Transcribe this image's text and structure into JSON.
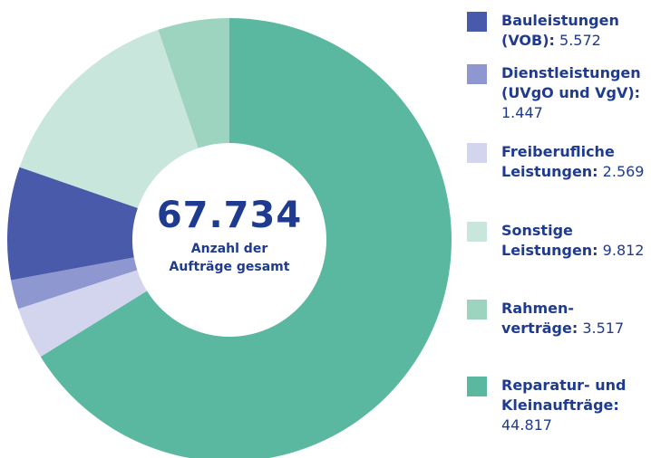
{
  "chart_data": {
    "type": "donut",
    "total": {
      "value": 67734,
      "label": "67.734"
    },
    "center_text": "Anzahl der Aufträge gesamt",
    "series": [
      {
        "name": "Bauleistungen (VOB):",
        "color": "#4a5aab",
        "values": [
          5572
        ],
        "value_labels": [
          "5.572"
        ]
      },
      {
        "name": "Dienstleistungen (UVgO und VgV):",
        "color": "#8f97d1",
        "values": [
          1447
        ],
        "value_labels": [
          "1.447"
        ]
      },
      {
        "name": "Freiberufliche Leistungen:",
        "color": "#d3d5ee",
        "values": [
          2569
        ],
        "value_labels": [
          "2.569"
        ]
      },
      {
        "name": "Sonstige Leistungen:",
        "color": "#c9e6dc",
        "values": [
          9812
        ],
        "value_labels": [
          "9.812"
        ]
      },
      {
        "name": "Rahmen-verträge:",
        "color": "#9dd4c0",
        "values": [
          3517
        ],
        "value_labels": [
          "3.517"
        ]
      },
      {
        "name": "Reparatur- und Kleinaufträge:",
        "color": "#5bb8a0",
        "values": [
          44817
        ],
        "value_labels": [
          "44.817"
        ]
      }
    ]
  }
}
